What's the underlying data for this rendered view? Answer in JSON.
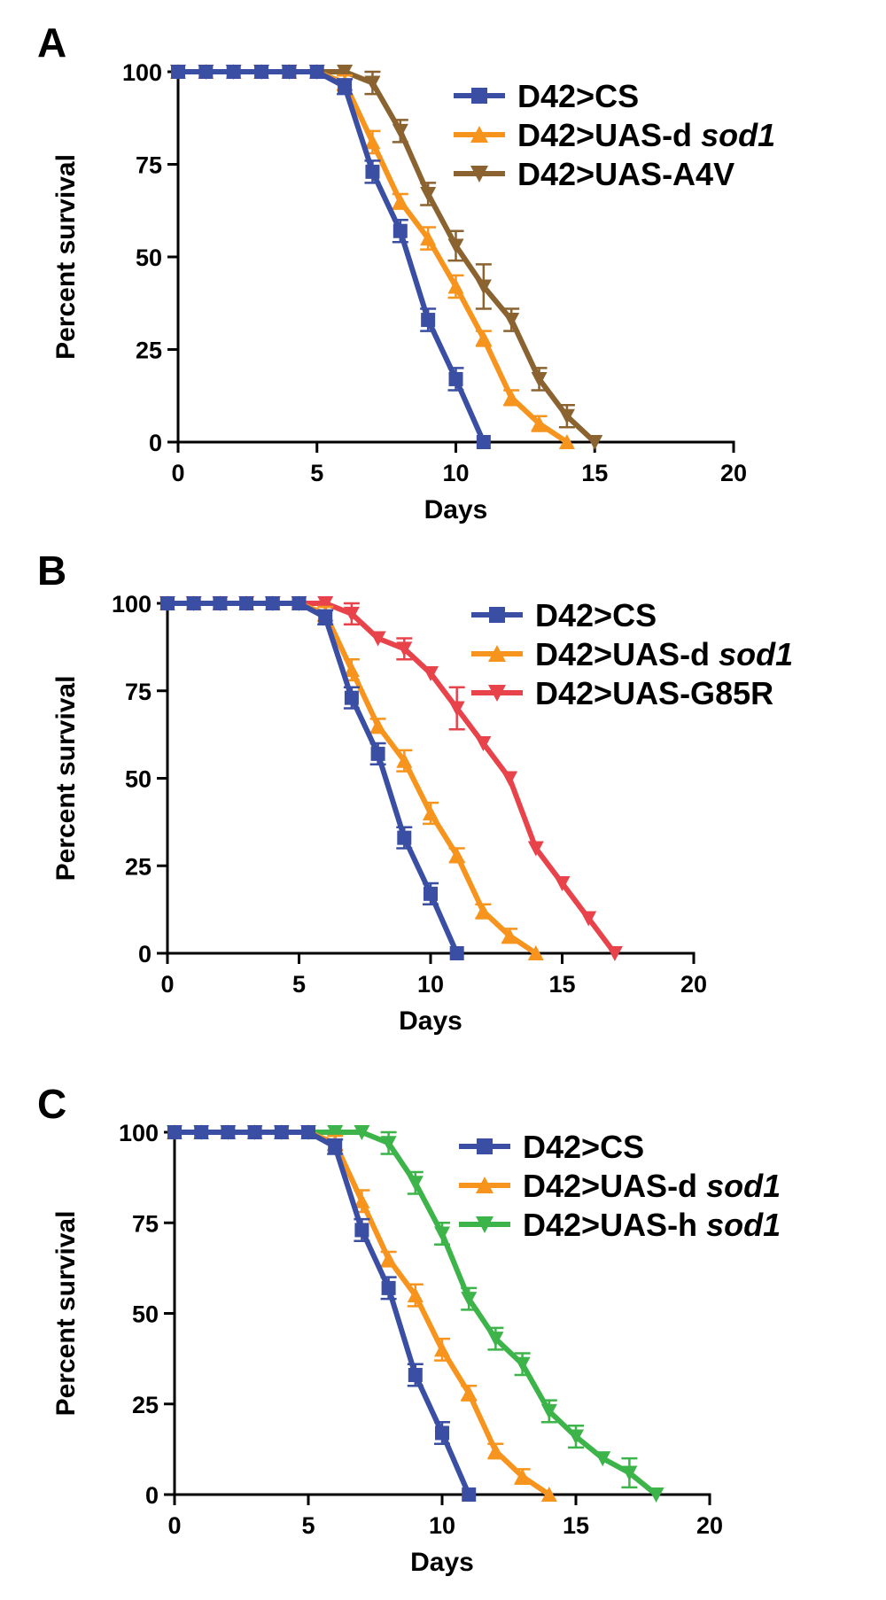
{
  "chart_data": [
    {
      "panel": "A",
      "type": "line",
      "xlabel": "Days",
      "ylabel": "Percent survival",
      "xlim": [
        0,
        20
      ],
      "ylim": [
        0,
        100
      ],
      "xticks": [
        "0",
        "5",
        "10",
        "15",
        "20"
      ],
      "yticks": [
        "0",
        "25",
        "50",
        "75",
        "100"
      ],
      "legend_position": "top-right",
      "series": [
        {
          "name": "D42>CS",
          "name_main": "D42>CS",
          "name_italic": "",
          "color": "#3a4fa3",
          "marker": "square",
          "x": [
            0,
            1,
            2,
            3,
            4,
            5,
            6,
            7,
            8,
            9,
            10,
            11
          ],
          "y": [
            100,
            100,
            100,
            100,
            100,
            100,
            96,
            73,
            57,
            33,
            17,
            0
          ],
          "err": [
            0,
            0,
            0,
            0,
            0,
            0,
            2,
            3,
            3,
            3,
            3,
            0
          ]
        },
        {
          "name": "D42>UAS-d sod1",
          "name_main": "D42>UAS-d",
          "name_italic": "sod1",
          "color": "#f7941d",
          "marker": "triangle-up",
          "x": [
            0,
            1,
            2,
            3,
            4,
            5,
            6,
            7,
            8,
            9,
            10,
            11,
            12,
            13,
            14
          ],
          "y": [
            100,
            100,
            100,
            100,
            100,
            100,
            97,
            81,
            65,
            55,
            42,
            28,
            12,
            5,
            0
          ],
          "err": [
            0,
            0,
            0,
            0,
            0,
            0,
            2,
            3,
            2,
            3,
            3,
            2,
            2,
            2,
            0
          ]
        },
        {
          "name": "D42>UAS-A4V",
          "name_main": "D42>UAS-A4V",
          "name_italic": "",
          "color": "#8b6330",
          "marker": "triangle-down",
          "x": [
            0,
            1,
            2,
            3,
            4,
            5,
            6,
            7,
            8,
            9,
            10,
            11,
            12,
            13,
            14,
            15
          ],
          "y": [
            100,
            100,
            100,
            100,
            100,
            100,
            100,
            97,
            84,
            67,
            53,
            42,
            33,
            17,
            7,
            0
          ],
          "err": [
            0,
            0,
            0,
            0,
            0,
            0,
            0,
            3,
            3,
            3,
            4,
            6,
            3,
            3,
            3,
            0
          ]
        }
      ]
    },
    {
      "panel": "B",
      "type": "line",
      "xlabel": "Days",
      "ylabel": "Percent survival",
      "xlim": [
        0,
        20
      ],
      "ylim": [
        0,
        100
      ],
      "xticks": [
        "0",
        "5",
        "10",
        "15",
        "20"
      ],
      "yticks": [
        "0",
        "25",
        "50",
        "75",
        "100"
      ],
      "legend_position": "top-right",
      "series": [
        {
          "name": "D42>CS",
          "name_main": "D42>CS",
          "name_italic": "",
          "color": "#3a4fa3",
          "marker": "square",
          "x": [
            0,
            1,
            2,
            3,
            4,
            5,
            6,
            7,
            8,
            9,
            10,
            11
          ],
          "y": [
            100,
            100,
            100,
            100,
            100,
            100,
            96,
            73,
            57,
            33,
            17,
            0
          ],
          "err": [
            0,
            0,
            0,
            0,
            0,
            0,
            2,
            3,
            3,
            3,
            3,
            0
          ]
        },
        {
          "name": "D42>UAS-d sod1",
          "name_main": "D42>UAS-d",
          "name_italic": "sod1",
          "color": "#f7941d",
          "marker": "triangle-up",
          "x": [
            0,
            1,
            2,
            3,
            4,
            5,
            6,
            7,
            8,
            9,
            10,
            11,
            12,
            13,
            14
          ],
          "y": [
            100,
            100,
            100,
            100,
            100,
            100,
            97,
            81,
            65,
            55,
            40,
            28,
            12,
            5,
            0
          ],
          "err": [
            0,
            0,
            0,
            0,
            0,
            0,
            2,
            3,
            2,
            3,
            3,
            2,
            2,
            2,
            0
          ]
        },
        {
          "name": "D42>UAS-G85R",
          "name_main": "D42>UAS-G85R",
          "name_italic": "",
          "color": "#e8434b",
          "marker": "triangle-down",
          "x": [
            0,
            1,
            2,
            3,
            4,
            5,
            6,
            7,
            8,
            9,
            10,
            11,
            12,
            13,
            14,
            15,
            16,
            17
          ],
          "y": [
            100,
            100,
            100,
            100,
            100,
            100,
            100,
            97,
            90,
            87,
            80,
            70,
            60,
            50,
            30,
            20,
            10,
            0
          ],
          "err": [
            0,
            0,
            0,
            0,
            0,
            0,
            0,
            3,
            0,
            3,
            0,
            6,
            0,
            0,
            0,
            0,
            0,
            0
          ]
        }
      ]
    },
    {
      "panel": "C",
      "type": "line",
      "xlabel": "Days",
      "ylabel": "Percent survival",
      "xlim": [
        0,
        20
      ],
      "ylim": [
        0,
        100
      ],
      "xticks": [
        "0",
        "5",
        "10",
        "15",
        "20"
      ],
      "yticks": [
        "0",
        "25",
        "50",
        "75",
        "100"
      ],
      "legend_position": "top-right",
      "series": [
        {
          "name": "D42>CS",
          "name_main": "D42>CS",
          "name_italic": "",
          "color": "#3a4fa3",
          "marker": "square",
          "x": [
            0,
            1,
            2,
            3,
            4,
            5,
            6,
            7,
            8,
            9,
            10,
            11
          ],
          "y": [
            100,
            100,
            100,
            100,
            100,
            100,
            96,
            73,
            57,
            33,
            17,
            0
          ],
          "err": [
            0,
            0,
            0,
            0,
            0,
            0,
            2,
            3,
            3,
            3,
            3,
            0
          ]
        },
        {
          "name": "D42>UAS-d sod1",
          "name_main": "D42>UAS-d",
          "name_italic": "sod1",
          "color": "#f7941d",
          "marker": "triangle-up",
          "x": [
            0,
            1,
            2,
            3,
            4,
            5,
            6,
            7,
            8,
            9,
            10,
            11,
            12,
            13,
            14
          ],
          "y": [
            100,
            100,
            100,
            100,
            100,
            100,
            97,
            81,
            65,
            55,
            40,
            28,
            12,
            5,
            0
          ],
          "err": [
            0,
            0,
            0,
            0,
            0,
            0,
            2,
            3,
            2,
            3,
            3,
            2,
            2,
            2,
            0
          ]
        },
        {
          "name": "D42>UAS-h sod1",
          "name_main": "D42>UAS-h",
          "name_italic": "sod1",
          "color": "#3cb44a",
          "marker": "triangle-down",
          "x": [
            0,
            1,
            2,
            3,
            4,
            5,
            6,
            7,
            8,
            9,
            10,
            11,
            12,
            13,
            14,
            15,
            16,
            17,
            18
          ],
          "y": [
            100,
            100,
            100,
            100,
            100,
            100,
            100,
            100,
            97,
            86,
            72,
            54,
            43,
            36,
            23,
            16,
            10,
            6,
            0
          ],
          "err": [
            0,
            0,
            0,
            0,
            0,
            0,
            0,
            0,
            3,
            3,
            3,
            3,
            3,
            3,
            3,
            3,
            0,
            4,
            0
          ]
        }
      ]
    }
  ]
}
